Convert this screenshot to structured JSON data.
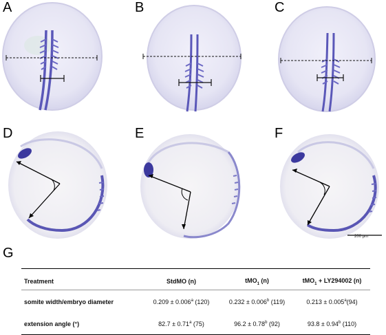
{
  "panels": {
    "a": "A",
    "b": "B",
    "c": "C",
    "d": "D",
    "e": "E",
    "f": "F",
    "g": "G"
  },
  "scale_bar": "200 μm",
  "table": {
    "headers": {
      "treatment": "Treatment",
      "std": "StdMO (n)",
      "tmo_prefix": "tMO",
      "tmo_sub": "1",
      "tmo_suffix": " (n)",
      "ly_prefix": "tMO",
      "ly_sub": "1",
      "ly_suffix": " + LY294002 (n)"
    },
    "rows": [
      {
        "label": "somite width/embryo diameter",
        "std": "0.209 ± 0.006",
        "std_sup": "a",
        "std_n": " (120)",
        "tmo": "0.232 ± 0.006",
        "tmo_sup": "b",
        "tmo_n": " (119)",
        "ly": "0.213 ± 0.005",
        "ly_sup": "a",
        "ly_n": "(94)"
      },
      {
        "label": "extension angle (°)",
        "std": "82.7 ± 0.71",
        "std_sup": "a",
        "std_n": " (75)",
        "tmo": "96.2 ± 0.78",
        "tmo_sup": "b",
        "tmo_n": " (92)",
        "ly": "93.8 ± 0.94",
        "ly_sup": "b",
        "ly_n": " (110)"
      }
    ]
  }
}
